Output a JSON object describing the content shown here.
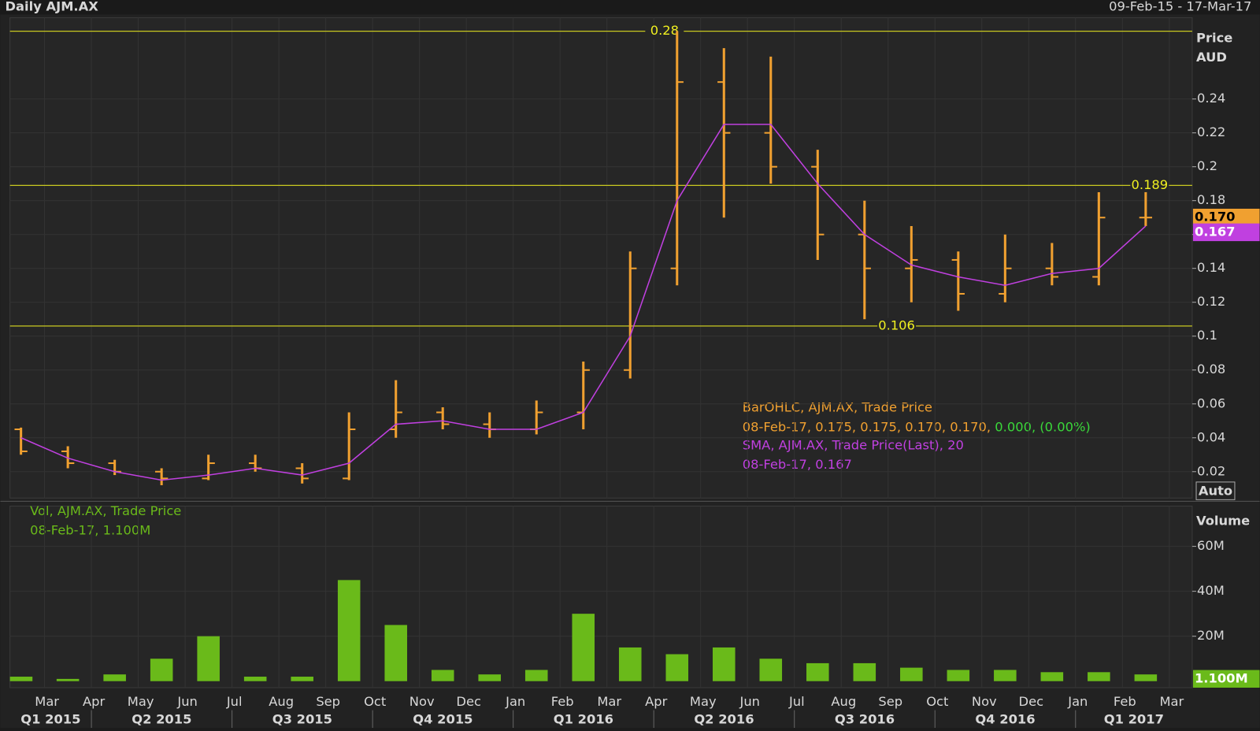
{
  "header": {
    "title": "Daily AJM.AX",
    "range": "09-Feb-15 - 17-Mar-17"
  },
  "chart_data": [
    {
      "type": "ohlc",
      "categories": [
        null,
        "Mar",
        "Apr",
        "May",
        "Jun",
        "Jul",
        "Aug",
        "Sep",
        "Oct",
        "Nov",
        "Dec",
        "Jan",
        "Feb",
        "Mar",
        "Apr",
        "May",
        "Jun",
        "Jul",
        "Aug",
        "Sep",
        "Oct",
        "Nov",
        "Dec",
        "Jan",
        "Feb",
        "Mar"
      ],
      "quarters": [
        "Q1 2015",
        "Q2 2015",
        "Q3 2015",
        "Q4 2015",
        "Q1 2016",
        "Q2 2016",
        "Q3 2016",
        "Q4 2016",
        "Q1 2017"
      ],
      "series": [
        {
          "name": "BarOHLC, AJM.AX, Trade Price",
          "color": "#f0a030",
          "open": [
            0.045,
            0.032,
            0.025,
            0.02,
            0.016,
            0.025,
            0.022,
            0.016,
            0.045,
            0.055,
            0.048,
            0.045,
            0.055,
            0.08,
            0.14,
            0.25,
            0.22,
            0.2,
            0.16,
            0.14,
            0.145,
            0.125,
            0.14,
            0.135,
            0.17,
            null
          ],
          "high": [
            0.046,
            0.035,
            0.027,
            0.022,
            0.03,
            0.03,
            0.025,
            0.055,
            0.074,
            0.058,
            0.055,
            0.062,
            0.085,
            0.15,
            0.28,
            0.27,
            0.265,
            0.21,
            0.18,
            0.165,
            0.15,
            0.16,
            0.155,
            0.185,
            0.185,
            null
          ],
          "low": [
            0.03,
            0.022,
            0.018,
            0.012,
            0.015,
            0.02,
            0.013,
            0.015,
            0.04,
            0.045,
            0.04,
            0.042,
            0.045,
            0.075,
            0.13,
            0.17,
            0.19,
            0.145,
            0.11,
            0.12,
            0.115,
            0.12,
            0.13,
            0.13,
            0.165,
            null
          ],
          "close": [
            0.032,
            0.025,
            0.02,
            0.016,
            0.025,
            0.022,
            0.016,
            0.045,
            0.055,
            0.048,
            0.045,
            0.055,
            0.08,
            0.14,
            0.25,
            0.22,
            0.2,
            0.16,
            0.14,
            0.145,
            0.125,
            0.14,
            0.135,
            0.17,
            0.17,
            null
          ]
        },
        {
          "name": "SMA, AJM.AX, Trade Price(Last),  20",
          "color": "#c040e0",
          "values": [
            0.04,
            0.028,
            0.02,
            0.015,
            0.018,
            0.022,
            0.018,
            0.025,
            0.048,
            0.05,
            0.045,
            0.045,
            0.055,
            0.1,
            0.18,
            0.225,
            0.225,
            0.19,
            0.16,
            0.142,
            0.135,
            0.13,
            0.137,
            0.14,
            0.165,
            null
          ]
        }
      ],
      "legend_values": [
        "08-Feb-17, 0.175, 0.175, 0.170, 0.170, ",
        "0.000, (0.00%)",
        "08-Feb-17, 0.167"
      ],
      "hlines": [
        0.28,
        0.189,
        0.106
      ],
      "last_values": [
        {
          "value": 0.17,
          "label": "0.170"
        },
        {
          "value": 0.167,
          "label": "0.167"
        }
      ],
      "y_axis_title": [
        "Price",
        "AUD"
      ],
      "auto_label": "Auto",
      "ylim": [
        0.0044,
        0.288
      ],
      "yticks": [
        0.02,
        0.04,
        0.06,
        0.08,
        0.1,
        0.12,
        0.14,
        0.16,
        0.18,
        0.2,
        0.22,
        0.24
      ]
    },
    {
      "type": "bar",
      "series": [
        {
          "name": "Vol, AJM.AX, Trade Price",
          "color": "#6aba1a",
          "values": [
            2,
            1,
            3,
            10,
            20,
            2,
            2,
            45,
            25,
            5,
            3,
            5,
            30,
            15,
            12,
            15,
            10,
            8,
            8,
            6,
            5,
            5,
            4,
            4,
            3,
            null
          ]
        }
      ],
      "legend_value": "08-Feb-17, 1.100M",
      "last_value": {
        "value": 1.1,
        "label": "1.100M"
      },
      "y_axis_title": "Volume",
      "ylim": [
        -2.9,
        77.9
      ],
      "yticks": [
        {
          "value": 20,
          "label": "20M"
        },
        {
          "value": 40,
          "label": "40M"
        },
        {
          "value": 60,
          "label": "60M"
        }
      ]
    }
  ]
}
